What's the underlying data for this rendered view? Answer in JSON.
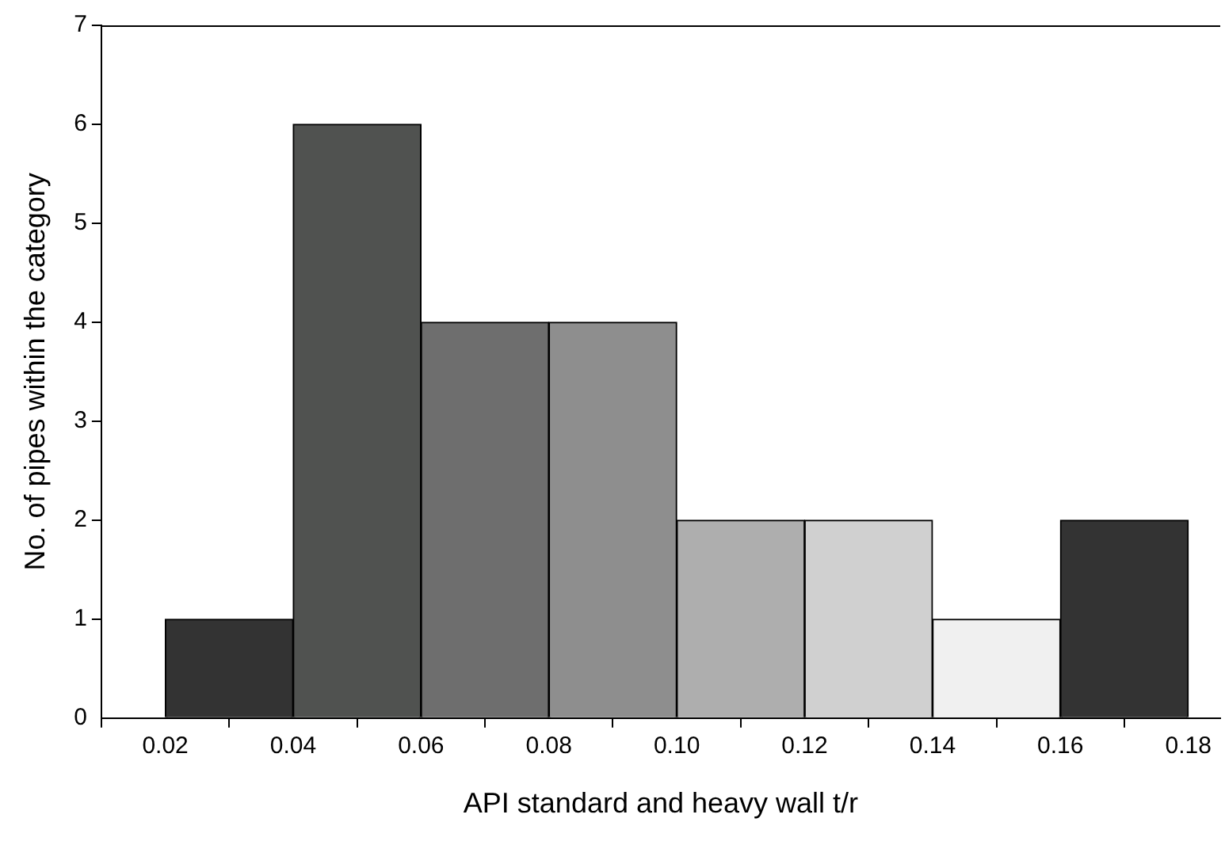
{
  "chart_data": {
    "type": "histogram",
    "bins": [
      0.02,
      0.04,
      0.06,
      0.08,
      0.1,
      0.12,
      0.14,
      0.16,
      0.18
    ],
    "values": [
      1,
      6,
      4,
      4,
      2,
      2,
      1,
      2
    ],
    "colors": [
      "#333333",
      "#505250",
      "#6e6e6e",
      "#8e8e8e",
      "#aeaeae",
      "#d0d0d0",
      "#f0f0f0",
      "#333333"
    ],
    "xlabel": "API standard and heavy wall t/r",
    "ylabel": "No. of pipes within the category",
    "xlim": [
      0.01,
      0.185
    ],
    "xticks": [
      {
        "value": 0.02,
        "label": "0.02"
      },
      {
        "value": 0.04,
        "label": "0.04"
      },
      {
        "value": 0.06,
        "label": "0.06"
      },
      {
        "value": 0.08,
        "label": "0.08"
      },
      {
        "value": 0.1,
        "label": "0.10"
      },
      {
        "value": 0.12,
        "label": "0.12"
      },
      {
        "value": 0.14,
        "label": "0.14"
      },
      {
        "value": 0.16,
        "label": "0.16"
      },
      {
        "value": 0.18,
        "label": "0.18"
      }
    ],
    "ylim": [
      0,
      7
    ],
    "yticks": [
      0,
      1,
      2,
      3,
      4,
      5,
      6,
      7
    ],
    "grid": false,
    "legend": false
  }
}
